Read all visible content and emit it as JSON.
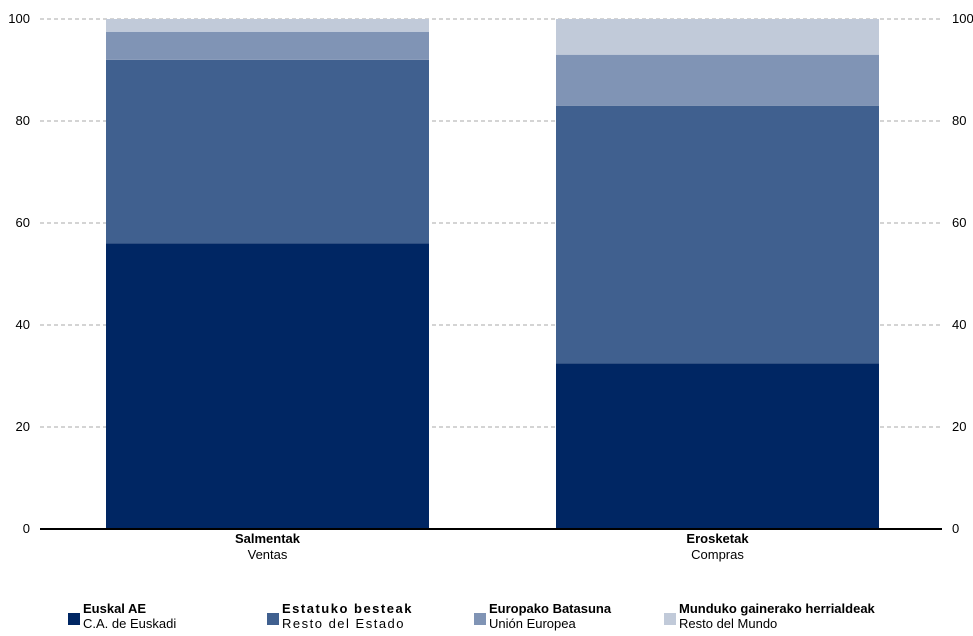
{
  "chart_data": {
    "type": "bar",
    "stacked": true,
    "categories": [
      {
        "label": "Salmentak",
        "sublabel": "Ventas"
      },
      {
        "label": "Erosketak",
        "sublabel": "Compras"
      }
    ],
    "series": [
      {
        "name": "Euskal AE",
        "subname": "C.A. de Euskadi",
        "color": "#002663",
        "values": [
          56,
          32.5
        ]
      },
      {
        "name": "Estatuko besteak",
        "subname": "Resto del Estado",
        "color": "#40608F",
        "values": [
          36,
          50.5
        ]
      },
      {
        "name": "Europako Batasuna",
        "subname": "Unión Europea",
        "color": "#8094B5",
        "values": [
          5.5,
          10
        ]
      },
      {
        "name": "Munduko gainerako herrialdeak",
        "subname": "Resto del Mundo",
        "color": "#C1CAD9",
        "values": [
          2.5,
          7
        ]
      }
    ],
    "y_ticks": [
      "0",
      "20",
      "40",
      "60",
      "80",
      "100"
    ],
    "ylim": [
      0,
      100
    ],
    "grid": true,
    "legend_position": "bottom"
  }
}
